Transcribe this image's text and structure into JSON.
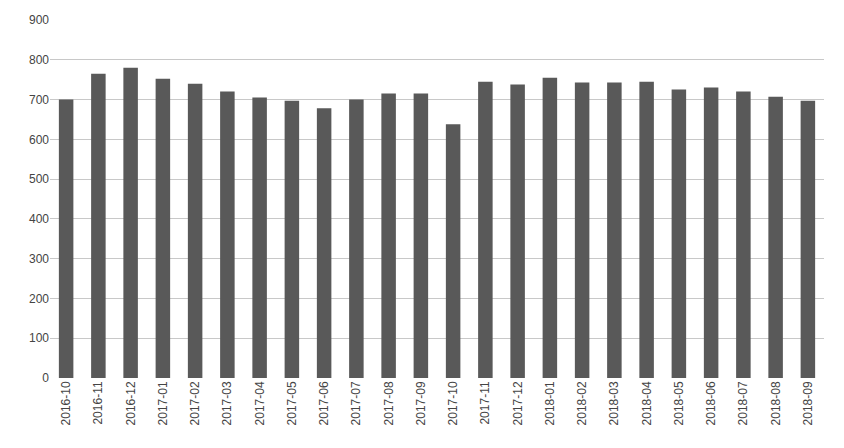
{
  "chart_data": {
    "type": "bar",
    "categories": [
      "2016-10",
      "2016-11",
      "2016-12",
      "2017-01",
      "2017-02",
      "2017-03",
      "2017-04",
      "2017-05",
      "2017-06",
      "2017-07",
      "2017-08",
      "2017-09",
      "2017-10",
      "2017-11",
      "2017-12",
      "2018-01",
      "2018-02",
      "2018-03",
      "2018-04",
      "2018-05",
      "2018-06",
      "2018-07",
      "2018-08",
      "2018-09"
    ],
    "values": [
      700,
      765,
      780,
      752,
      740,
      720,
      705,
      697,
      678,
      700,
      715,
      715,
      638,
      745,
      738,
      755,
      743,
      743,
      745,
      725,
      730,
      720,
      707,
      697
    ],
    "color": "#595959",
    "ylim": [
      0,
      900
    ],
    "yticks": [
      0,
      100,
      200,
      300,
      400,
      500,
      600,
      700,
      800,
      900
    ],
    "grid": true
  }
}
